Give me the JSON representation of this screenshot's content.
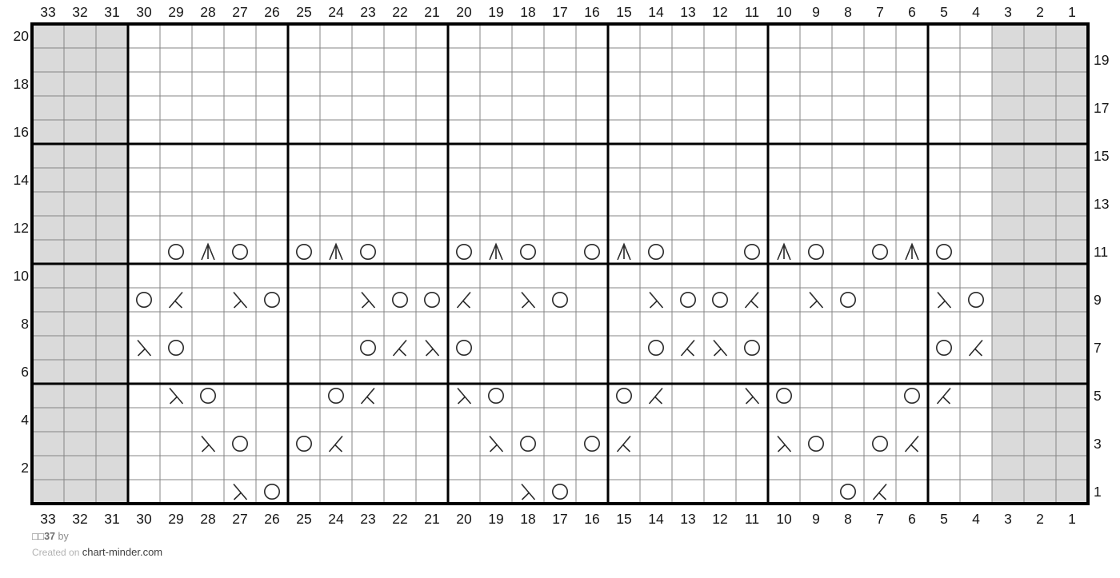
{
  "footer": {
    "title_name": "□□37",
    "title_suffix": " by",
    "credit_prefix": "Created on ",
    "credit_site": "chart-minder.com"
  },
  "colors": {
    "background": "#ffffff",
    "grid_thin": "#848484",
    "grid_thick": "#000000",
    "no_stitch_fill": "#dadada",
    "symbol": "#2b2b2b",
    "label": "#161616"
  },
  "chart_data": {
    "type": "knitting-lace-chart",
    "columns": 33,
    "rows": 20,
    "major_grid_every": 5,
    "top_col_labels": [
      "33",
      "32",
      "31",
      "30",
      "29",
      "28",
      "27",
      "26",
      "25",
      "24",
      "23",
      "22",
      "21",
      "20",
      "19",
      "18",
      "17",
      "16",
      "15",
      "14",
      "13",
      "12",
      "11",
      "10",
      "9",
      "8",
      "7",
      "6",
      "5",
      "4",
      "3",
      "2",
      "1"
    ],
    "bottom_col_labels": [
      "33",
      "32",
      "31",
      "30",
      "29",
      "28",
      "27",
      "26",
      "25",
      "24",
      "23",
      "22",
      "21",
      "20",
      "19",
      "18",
      "17",
      "16",
      "15",
      "14",
      "13",
      "12",
      "11",
      "10",
      "9",
      "8",
      "7",
      "6",
      "5",
      "4",
      "3",
      "2",
      "1"
    ],
    "left_row_labels": [
      "20",
      "18",
      "16",
      "14",
      "12",
      "10",
      "8",
      "6",
      "4",
      "2"
    ],
    "right_row_labels": [
      "19",
      "17",
      "15",
      "13",
      "11",
      "9",
      "7",
      "5",
      "3",
      "1"
    ],
    "gray_columns": [
      33,
      32,
      31,
      3,
      2,
      1
    ],
    "legend": {
      "yo": "yarn over (circle)",
      "k2tog": "knit two together (right-leaning decrease)",
      "ssk": "slip-slip-knit (left-leaning decrease)",
      "cdd": "centered double decrease (peak with center stem)"
    },
    "stitch_format": [
      "row",
      "column",
      "symbol"
    ],
    "stitches": [
      [
        11,
        29,
        "yo"
      ],
      [
        11,
        28,
        "cdd"
      ],
      [
        11,
        27,
        "yo"
      ],
      [
        11,
        25,
        "yo"
      ],
      [
        11,
        24,
        "cdd"
      ],
      [
        11,
        23,
        "yo"
      ],
      [
        11,
        20,
        "yo"
      ],
      [
        11,
        19,
        "cdd"
      ],
      [
        11,
        18,
        "yo"
      ],
      [
        11,
        16,
        "yo"
      ],
      [
        11,
        15,
        "cdd"
      ],
      [
        11,
        14,
        "yo"
      ],
      [
        11,
        11,
        "yo"
      ],
      [
        11,
        10,
        "cdd"
      ],
      [
        11,
        9,
        "yo"
      ],
      [
        11,
        7,
        "yo"
      ],
      [
        11,
        6,
        "cdd"
      ],
      [
        11,
        5,
        "yo"
      ],
      [
        9,
        30,
        "yo"
      ],
      [
        9,
        29,
        "k2tog"
      ],
      [
        9,
        27,
        "ssk"
      ],
      [
        9,
        26,
        "yo"
      ],
      [
        9,
        23,
        "ssk"
      ],
      [
        9,
        22,
        "yo"
      ],
      [
        9,
        21,
        "yo"
      ],
      [
        9,
        20,
        "k2tog"
      ],
      [
        9,
        18,
        "ssk"
      ],
      [
        9,
        17,
        "yo"
      ],
      [
        9,
        14,
        "ssk"
      ],
      [
        9,
        13,
        "yo"
      ],
      [
        9,
        12,
        "yo"
      ],
      [
        9,
        11,
        "k2tog"
      ],
      [
        9,
        9,
        "ssk"
      ],
      [
        9,
        8,
        "yo"
      ],
      [
        9,
        5,
        "ssk"
      ],
      [
        9,
        4,
        "yo"
      ],
      [
        7,
        30,
        "ssk"
      ],
      [
        7,
        29,
        "yo"
      ],
      [
        7,
        23,
        "yo"
      ],
      [
        7,
        22,
        "k2tog"
      ],
      [
        7,
        21,
        "ssk"
      ],
      [
        7,
        20,
        "yo"
      ],
      [
        7,
        14,
        "yo"
      ],
      [
        7,
        13,
        "k2tog"
      ],
      [
        7,
        12,
        "ssk"
      ],
      [
        7,
        11,
        "yo"
      ],
      [
        7,
        5,
        "yo"
      ],
      [
        7,
        4,
        "k2tog"
      ],
      [
        5,
        29,
        "ssk"
      ],
      [
        5,
        28,
        "yo"
      ],
      [
        5,
        24,
        "yo"
      ],
      [
        5,
        23,
        "k2tog"
      ],
      [
        5,
        20,
        "ssk"
      ],
      [
        5,
        19,
        "yo"
      ],
      [
        5,
        15,
        "yo"
      ],
      [
        5,
        14,
        "k2tog"
      ],
      [
        5,
        11,
        "ssk"
      ],
      [
        5,
        10,
        "yo"
      ],
      [
        5,
        6,
        "yo"
      ],
      [
        5,
        5,
        "k2tog"
      ],
      [
        3,
        28,
        "ssk"
      ],
      [
        3,
        27,
        "yo"
      ],
      [
        3,
        25,
        "yo"
      ],
      [
        3,
        24,
        "k2tog"
      ],
      [
        3,
        19,
        "ssk"
      ],
      [
        3,
        18,
        "yo"
      ],
      [
        3,
        16,
        "yo"
      ],
      [
        3,
        15,
        "k2tog"
      ],
      [
        3,
        10,
        "ssk"
      ],
      [
        3,
        9,
        "yo"
      ],
      [
        3,
        7,
        "yo"
      ],
      [
        3,
        6,
        "k2tog"
      ],
      [
        1,
        27,
        "ssk"
      ],
      [
        1,
        26,
        "yo"
      ],
      [
        1,
        18,
        "ssk"
      ],
      [
        1,
        17,
        "yo"
      ],
      [
        1,
        8,
        "yo"
      ],
      [
        1,
        7,
        "k2tog"
      ]
    ]
  }
}
